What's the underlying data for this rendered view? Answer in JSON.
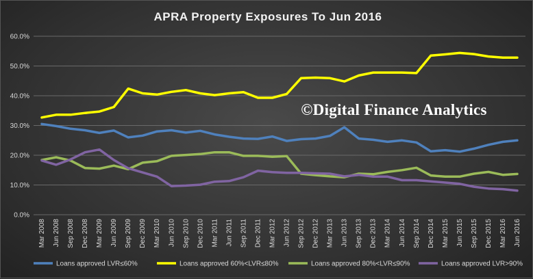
{
  "chart_data": {
    "type": "line",
    "title": "APRA Property Exposures To Jun 2016",
    "watermark": "©Digital Finance Analytics",
    "ylim": [
      0,
      60
    ],
    "ytick_labels": [
      "0.0%",
      "10.0%",
      "20.0%",
      "30.0%",
      "40.0%",
      "50.0%",
      "60.0%"
    ],
    "grid": true,
    "legend_position": "bottom",
    "categories": [
      "Mar 2008",
      "Jun 2008",
      "Sep 2008",
      "Dec 2008",
      "Mar 2009",
      "Jun 2009",
      "Sep 2009",
      "Dec 2009",
      "Mar 2010",
      "Jun 2010",
      "Sep 2010",
      "Dec 2010",
      "Mar 2011",
      "Jun 2011",
      "Sep 2011",
      "Dec 2011",
      "Mar 2012",
      "Jun 2012",
      "Sep 2012",
      "Dec 2012",
      "Mar 2013",
      "Jun 2013",
      "Sep 2013",
      "Dec 2013",
      "Mar 2014",
      "Jun 2014",
      "Sep 2014",
      "Dec 2014",
      "Mar 2015",
      "Jun 2015",
      "Sep 2015",
      "Dec 2015",
      "Mar 2016",
      "Jun 2016"
    ],
    "series": [
      {
        "name": "Loans approved LVR≤60%",
        "color": "#4f81bd",
        "values": [
          30.5,
          29.8,
          28.9,
          28.4,
          27.5,
          28.3,
          26.0,
          26.6,
          28.0,
          28.4,
          27.6,
          28.2,
          27.0,
          26.2,
          25.6,
          25.5,
          26.3,
          24.8,
          25.4,
          25.6,
          26.5,
          29.4,
          25.6,
          25.2,
          24.5,
          25.0,
          24.3,
          21.3,
          21.7,
          21.2,
          22.2,
          23.5,
          24.5,
          25.0
        ]
      },
      {
        "name": "Loans approved 60%<LVR≤80%",
        "color": "#ffff00",
        "values": [
          32.7,
          33.6,
          33.6,
          34.2,
          34.7,
          36.2,
          42.4,
          40.8,
          40.4,
          41.3,
          41.9,
          40.8,
          40.2,
          40.8,
          41.2,
          39.3,
          39.3,
          40.6,
          45.9,
          46.1,
          45.9,
          44.8,
          46.8,
          47.8,
          47.8,
          47.8,
          47.6,
          53.5,
          53.9,
          54.4,
          54.0,
          53.2,
          52.8,
          52.8
        ]
      },
      {
        "name": "Loans approved 80%<LVR≤90%",
        "color": "#9bbb59",
        "values": [
          18.4,
          19.3,
          18.2,
          15.7,
          15.5,
          16.5,
          15.3,
          17.5,
          18.0,
          19.8,
          20.1,
          20.4,
          21.0,
          21.0,
          19.8,
          19.8,
          19.5,
          19.7,
          13.8,
          13.3,
          12.9,
          12.6,
          13.8,
          13.6,
          14.4,
          15.0,
          15.8,
          13.2,
          12.8,
          12.8,
          13.8,
          14.4,
          13.4,
          13.7
        ]
      },
      {
        "name": "Loans approved LVR>90%",
        "color": "#8064a2",
        "values": [
          18.2,
          16.8,
          18.6,
          21.0,
          21.9,
          18.4,
          15.6,
          14.2,
          12.8,
          9.6,
          9.8,
          10.1,
          11.1,
          11.3,
          12.6,
          14.8,
          14.3,
          14.1,
          14.1,
          13.9,
          13.8,
          12.9,
          13.4,
          12.8,
          12.8,
          11.6,
          11.6,
          11.2,
          10.8,
          10.4,
          9.4,
          8.8,
          8.6,
          8.1
        ]
      }
    ]
  }
}
